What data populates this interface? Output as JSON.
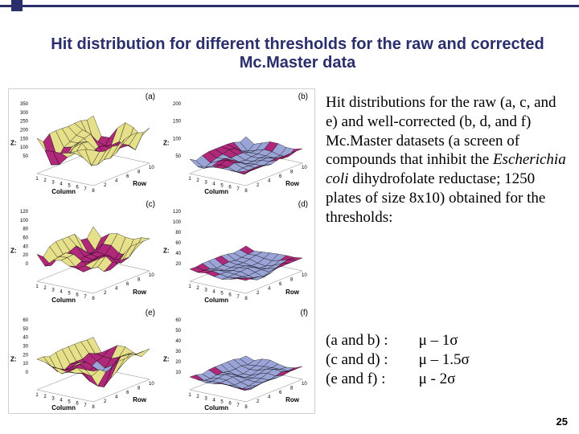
{
  "title": "Hit distribution for different thresholds for the raw and corrected Mc.Master data",
  "page_number": "25",
  "body_paragraph_html": "Hit distributions for the raw (a, c, and e) and well-corrected (b, d, and f) Mc.Master datasets (a screen of compounds that inhibit the <em>Escherichia coli</em> dihydrofolate reductase; 1250 plates of size 8x10) obtained for the thresholds:",
  "thresholds": {
    "rows": [
      {
        "label": "(a and b) :",
        "formula": "μ – 1σ"
      },
      {
        "label": "(c and d) :",
        "formula": "μ – 1.5σ"
      },
      {
        "label": "(e and f) :",
        "formula": "μ - 2σ"
      }
    ]
  },
  "surface_axes": {
    "z": "Z:",
    "column": "Column",
    "row": "Row"
  },
  "plots": [
    {
      "id": "plot-a",
      "letter": "(a)",
      "type": "surface-3d",
      "y_ticks": [
        "350",
        "300",
        "250",
        "200",
        "150",
        "100",
        "50"
      ],
      "col_ticks": [
        "1",
        "2",
        "3",
        "4",
        "5",
        "6",
        "7",
        "8"
      ],
      "row_ticks": [
        "2",
        "4",
        "6",
        "8",
        "10"
      ],
      "colors": {
        "top": "#e7e08a",
        "mid": "#b02879",
        "low": "#9aa4d6",
        "wire": "#000000",
        "bg": "#ffffff"
      },
      "amplitude": 1.0
    },
    {
      "id": "plot-b",
      "letter": "(b)",
      "type": "surface-3d",
      "y_ticks": [
        "200",
        "150",
        "100",
        "50"
      ],
      "col_ticks": [
        "1",
        "2",
        "3",
        "4",
        "5",
        "6",
        "7",
        "8"
      ],
      "row_ticks": [
        "2",
        "4",
        "6",
        "8",
        "10"
      ],
      "colors": {
        "top": "#e7e08a",
        "mid": "#b02879",
        "low": "#9aa4d6",
        "wire": "#000000",
        "bg": "#ffffff"
      },
      "amplitude": 0.35
    },
    {
      "id": "plot-c",
      "letter": "(c)",
      "type": "surface-3d",
      "y_ticks": [
        "120",
        "100",
        "80",
        "60",
        "40",
        "20",
        "0"
      ],
      "col_ticks": [
        "1",
        "2",
        "3",
        "4",
        "5",
        "6",
        "7",
        "8"
      ],
      "row_ticks": [
        "2",
        "4",
        "6",
        "8",
        "10"
      ],
      "colors": {
        "top": "#e7e08a",
        "mid": "#b02879",
        "low": "#9aa4d6",
        "wire": "#000000",
        "bg": "#ffffff"
      },
      "amplitude": 0.9
    },
    {
      "id": "plot-d",
      "letter": "(d)",
      "type": "surface-3d",
      "y_ticks": [
        "120",
        "100",
        "80",
        "60",
        "40",
        "20"
      ],
      "col_ticks": [
        "1",
        "2",
        "3",
        "4",
        "5",
        "6",
        "7",
        "8"
      ],
      "row_ticks": [
        "2",
        "4",
        "6",
        "8",
        "10"
      ],
      "colors": {
        "top": "#e7e08a",
        "mid": "#b02879",
        "low": "#9aa4d6",
        "wire": "#000000",
        "bg": "#ffffff"
      },
      "amplitude": 0.3
    },
    {
      "id": "plot-e",
      "letter": "(e)",
      "type": "surface-3d",
      "y_ticks": [
        "60",
        "50",
        "40",
        "30",
        "20",
        "10",
        "0"
      ],
      "col_ticks": [
        "1",
        "2",
        "3",
        "4",
        "5",
        "6",
        "7",
        "8"
      ],
      "row_ticks": [
        "2",
        "4",
        "6",
        "8",
        "10"
      ],
      "colors": {
        "top": "#e7e08a",
        "mid": "#b02879",
        "low": "#9aa4d6",
        "wire": "#000000",
        "bg": "#ffffff"
      },
      "amplitude": 0.85
    },
    {
      "id": "plot-f",
      "letter": "(f)",
      "type": "surface-3d",
      "y_ticks": [
        "60",
        "50",
        "40",
        "30",
        "20",
        "10"
      ],
      "col_ticks": [
        "1",
        "2",
        "3",
        "4",
        "5",
        "6",
        "7",
        "8"
      ],
      "row_ticks": [
        "2",
        "4",
        "6",
        "8",
        "10"
      ],
      "colors": {
        "top": "#e7e08a",
        "mid": "#b02879",
        "low": "#9aa4d6",
        "wire": "#000000",
        "bg": "#ffffff"
      },
      "amplitude": 0.3
    }
  ]
}
